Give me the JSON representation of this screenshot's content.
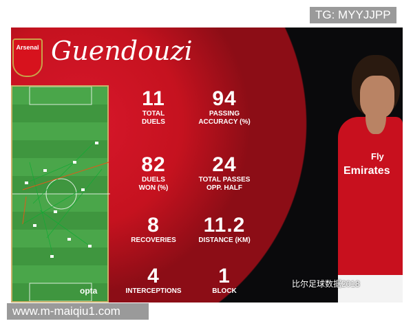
{
  "header": {
    "club": "Arsenal",
    "player_name": "Guendouzi"
  },
  "stats": [
    {
      "value": "11",
      "label": "TOTAL DUELS"
    },
    {
      "value": "94",
      "label": "PASSING ACCURACY (%)"
    },
    {
      "value": "82",
      "label": "DUELS WON (%)"
    },
    {
      "value": "24",
      "label": "TOTAL PASSES OPP. HALF"
    },
    {
      "value": "8",
      "label": "RECOVERIES"
    },
    {
      "value": "11.2",
      "label": "DISTANCE (KM)"
    },
    {
      "value": "4",
      "label": "INTERCEPTIONS"
    },
    {
      "value": "1",
      "label": "BLOCK"
    }
  ],
  "pitch": {
    "powered_by": "opta"
  },
  "shirt": {
    "sponsor_top": "Fly",
    "sponsor_bottom": "Emirates"
  },
  "watermarks": {
    "top_right": "TG: MYYJJPP",
    "bottom_left": "www.m-maiqiu1.com",
    "wechat": "比尔足球数据2018"
  },
  "colors": {
    "red": "#c5121f",
    "pitch": "#4aa64a"
  }
}
